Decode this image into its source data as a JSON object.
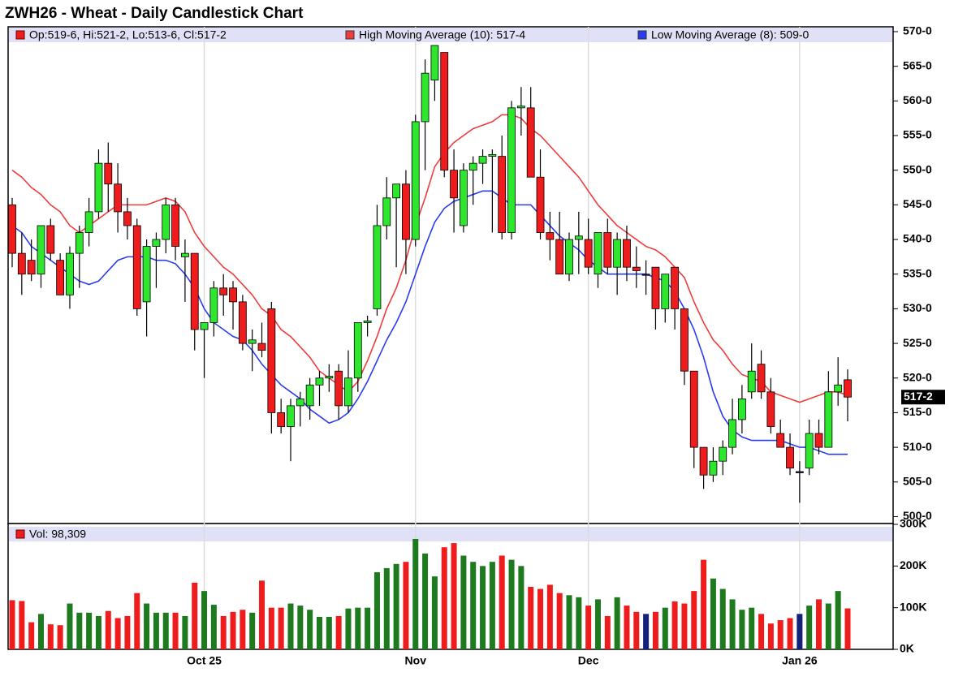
{
  "chart_data": {
    "type": "candlestick",
    "title": "ZWH26 - Wheat - Daily Candlestick Chart",
    "ohlc_label": "Op:519-6, Hi:521-2, Lo:513-6, Cl:517-2",
    "last_label": "517-2",
    "up_color": "#2ee62e",
    "down_color": "#ee1c1c",
    "flat_color": "#14207a",
    "categories": [
      null,
      null,
      null,
      null,
      null,
      null,
      null,
      null,
      null,
      null,
      null,
      null,
      null,
      null,
      null,
      null,
      null,
      null,
      null,
      null,
      "Oct 25",
      null,
      null,
      null,
      null,
      null,
      null,
      null,
      null,
      null,
      null,
      null,
      null,
      null,
      null,
      null,
      null,
      null,
      null,
      null,
      null,
      null,
      "Nov",
      null,
      null,
      null,
      null,
      null,
      null,
      null,
      null,
      null,
      null,
      null,
      null,
      null,
      null,
      null,
      null,
      null,
      "Dec",
      null,
      null,
      null,
      null,
      null,
      null,
      null,
      null,
      null,
      null,
      null,
      null,
      null,
      null,
      null,
      null,
      null,
      null,
      null,
      null,
      null,
      "Jan 26",
      null,
      null,
      null,
      null,
      null
    ],
    "open": [
      545,
      538,
      537,
      535,
      542,
      537,
      532,
      538,
      541,
      544,
      551,
      548,
      544,
      542,
      531,
      539,
      540,
      545,
      537.5,
      538,
      527,
      528,
      533,
      533,
      531,
      525,
      525,
      530,
      515,
      513,
      516,
      516,
      519,
      520,
      521,
      516,
      520,
      528,
      530,
      542,
      546,
      548,
      540,
      557,
      563,
      567,
      550,
      542,
      550,
      551,
      552,
      552,
      541,
      559,
      559,
      549,
      541,
      540,
      535,
      540,
      540,
      535,
      541,
      536,
      540,
      536,
      535,
      536,
      530,
      536,
      530,
      521,
      510,
      506,
      508,
      510,
      514,
      518,
      522,
      518,
      512,
      510,
      506.5,
      507,
      512,
      510,
      518,
      519.75
    ],
    "high": [
      546,
      541,
      540,
      542,
      543,
      538,
      539,
      542,
      546,
      553,
      554,
      551,
      546,
      543,
      540,
      541,
      546,
      546,
      540,
      538,
      528,
      534,
      535,
      534,
      532,
      527,
      528,
      531,
      517,
      517,
      518,
      520,
      521,
      522,
      522,
      524,
      528,
      529,
      545,
      549,
      548,
      550,
      558,
      566,
      568,
      567,
      553,
      551,
      552,
      553,
      553,
      555,
      560,
      562,
      562,
      553,
      544,
      544,
      541,
      544,
      543,
      541,
      543,
      541,
      542,
      539,
      537,
      536,
      535,
      536,
      530,
      521,
      510,
      510,
      511,
      517,
      519,
      525,
      524,
      520,
      514,
      512,
      508,
      514,
      514,
      521,
      523,
      521.25
    ],
    "low": [
      536,
      532,
      534,
      533,
      537,
      532,
      530,
      533,
      539,
      543,
      544,
      541,
      540,
      529,
      526,
      533,
      538,
      537,
      531,
      524,
      520,
      526,
      529,
      527,
      524,
      521,
      523,
      512,
      512,
      508,
      513,
      514,
      516,
      518,
      514,
      515,
      518,
      526,
      529,
      540,
      536,
      535,
      539,
      550,
      560,
      549,
      541,
      541,
      545,
      548,
      541,
      540,
      540,
      555,
      549,
      540,
      537,
      535,
      534,
      535,
      535,
      533,
      535,
      532,
      534,
      533,
      532,
      527,
      528,
      527,
      519,
      507,
      504,
      505,
      506,
      509,
      512,
      517,
      517,
      512,
      510,
      506,
      502,
      506,
      509,
      510,
      516,
      513.75
    ],
    "close": [
      538,
      535,
      535,
      542,
      538,
      532,
      538,
      541,
      544,
      551,
      548,
      544,
      542,
      530,
      539,
      540,
      545,
      539,
      538,
      527,
      528,
      533,
      532,
      531,
      525,
      525.5,
      524,
      515,
      513,
      516,
      517,
      519,
      520,
      520.25,
      516,
      520,
      528,
      528.25,
      542,
      546,
      548,
      540,
      557,
      564,
      568,
      550,
      546,
      550,
      551,
      552,
      552.25,
      541,
      559,
      559.25,
      549,
      541,
      540,
      535,
      540,
      540.5,
      536,
      541,
      536,
      540,
      536,
      535.5,
      535,
      530,
      535,
      530,
      521,
      510,
      506,
      508,
      510,
      514,
      517,
      521,
      518,
      513,
      510,
      507,
      506.5,
      512,
      510,
      518,
      519,
      517.25
    ],
    "series": [
      {
        "name": "High Moving Average (10): 517-4",
        "color": "#f03c3c",
        "values": [
          550,
          549,
          547.5,
          546.5,
          545,
          544,
          542,
          541,
          542,
          543,
          544,
          545,
          545,
          545,
          545,
          545.5,
          546,
          545.5,
          544,
          541,
          539,
          537.5,
          536,
          535,
          533.5,
          532,
          530,
          529,
          527,
          526,
          524.5,
          523,
          521,
          520,
          519,
          518,
          519.5,
          522.5,
          526,
          530,
          533,
          537,
          542,
          546,
          550.5,
          552.5,
          554,
          555,
          556,
          556.5,
          557,
          558,
          558,
          557.5,
          556,
          555,
          553.5,
          552,
          550.5,
          549,
          547,
          545,
          543.5,
          542,
          541,
          540,
          539,
          538.5,
          537.5,
          536,
          534.5,
          531,
          528,
          525.5,
          524,
          522,
          520.5,
          520,
          519.5,
          518,
          517.5,
          517,
          516.5,
          517,
          517.5,
          518,
          518,
          517.5
        ]
      },
      {
        "name": "Low Moving Average (8): 509-0",
        "color": "#2a3cf0",
        "values": [
          542,
          541,
          539,
          538,
          537,
          536,
          535,
          534,
          533.5,
          534,
          535.5,
          537,
          537.5,
          537.5,
          537.5,
          537,
          537,
          536.5,
          535,
          533,
          530,
          528,
          527,
          526,
          525.5,
          524,
          522,
          520.5,
          519,
          518,
          517,
          515.5,
          514.5,
          513.5,
          514,
          515,
          517,
          519.5,
          522.5,
          525.5,
          528,
          531,
          535,
          539,
          542.5,
          544.5,
          545.5,
          546,
          546.5,
          547,
          547,
          546,
          545,
          545,
          545,
          543.5,
          542,
          540.5,
          539.5,
          538.5,
          537,
          536,
          535,
          535,
          535,
          535,
          535,
          534.5,
          534,
          532.5,
          530,
          527,
          523,
          518,
          514.5,
          512.5,
          511.5,
          511,
          511,
          511,
          511,
          510.5,
          510,
          510,
          509.5,
          509,
          509,
          509
        ]
      }
    ],
    "ylim": [
      499,
      570.7
    ],
    "yticks": [
      {
        "value": 500,
        "label": "500-0"
      },
      {
        "value": 505,
        "label": "505-0"
      },
      {
        "value": 510,
        "label": "510-0"
      },
      {
        "value": 515,
        "label": "515-0"
      },
      {
        "value": 520,
        "label": "520-0"
      },
      {
        "value": 525,
        "label": "525-0"
      },
      {
        "value": 530,
        "label": "530-0"
      },
      {
        "value": 535,
        "label": "535-0"
      },
      {
        "value": 540,
        "label": "540-0"
      },
      {
        "value": 545,
        "label": "545-0"
      },
      {
        "value": 550,
        "label": "550-0"
      },
      {
        "value": 555,
        "label": "555-0"
      },
      {
        "value": 560,
        "label": "560-0"
      },
      {
        "value": 565,
        "label": "565-0"
      },
      {
        "value": 570,
        "label": "570-0"
      }
    ],
    "volume": {
      "label": "Vol: 98,309",
      "up_color": "#1e7a1e",
      "values": [
        118,
        116,
        65,
        85,
        60,
        58,
        110,
        88,
        88,
        80,
        92,
        75,
        80,
        135,
        110,
        88,
        88,
        88,
        80,
        160,
        140,
        107,
        80,
        90,
        95,
        88,
        165,
        100,
        100,
        110,
        105,
        95,
        78,
        78,
        80,
        98,
        100,
        100,
        185,
        195,
        205,
        210,
        265,
        230,
        175,
        245,
        255,
        225,
        210,
        200,
        210,
        225,
        215,
        200,
        150,
        145,
        155,
        135,
        130,
        125,
        105,
        120,
        80,
        125,
        105,
        90,
        85,
        90,
        100,
        115,
        110,
        140,
        215,
        170,
        145,
        120,
        95,
        100,
        85,
        62,
        70,
        75,
        85,
        105,
        120,
        110,
        140,
        98.309
      ],
      "ylim": [
        0,
        300
      ],
      "yticks": [
        {
          "value": 0,
          "label": "0K"
        },
        {
          "value": 100,
          "label": "100K"
        },
        {
          "value": 200,
          "label": "200K"
        },
        {
          "value": 300,
          "label": "300K"
        }
      ]
    }
  }
}
